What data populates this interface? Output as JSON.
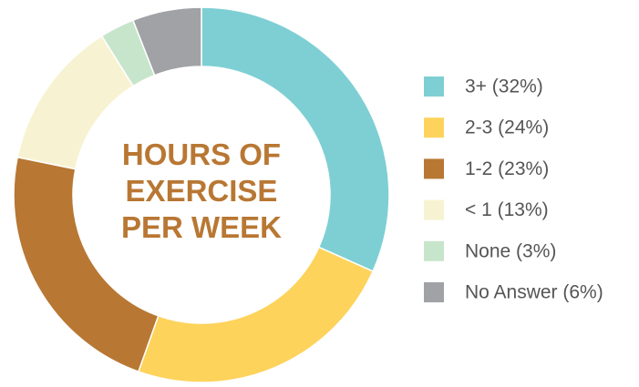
{
  "chart_data": {
    "type": "donut",
    "title": "HOURS OF EXERCISE PER WEEK",
    "categories": [
      "3+ (32%)",
      "2-3 (24%)",
      "1-2 (23%)",
      "< 1 (13%)",
      "None (3%)",
      "No Answer (6%)"
    ],
    "values": [
      32,
      24,
      23,
      13,
      3,
      6
    ],
    "colors": [
      "#7ecfd4",
      "#fdd35b",
      "#b87733",
      "#f7f3d2",
      "#c7e5cb",
      "#a1a2a6"
    ],
    "legend": "right"
  }
}
